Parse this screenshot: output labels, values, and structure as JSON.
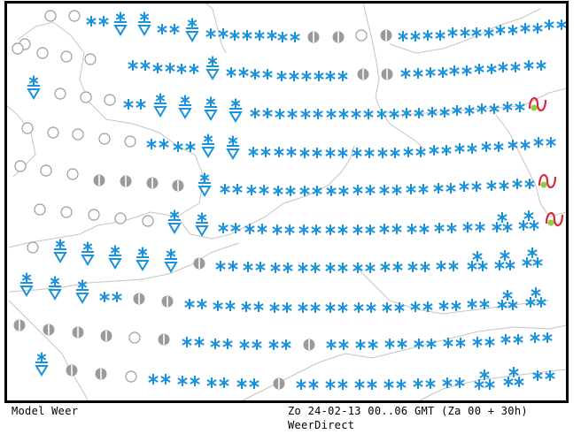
{
  "footer": {
    "model_label": "Model Weer",
    "valid_time": "Zo 24-02-13 00..06 GMT (Za 00 + 30h)",
    "source": "WeerDirect"
  },
  "colors": {
    "snow": "#1a93dc",
    "cloud": "#9a9a9a",
    "coastline": "#c4c4c4",
    "freezing_rain": "#d8283a",
    "freezing_dot": "#8ccf3c",
    "frame": "#000000"
  },
  "symbol_types": {
    "O": "clear-sky",
    "H": "partly-cloudy",
    "S2": "snow",
    "S3": "heavy-snow",
    "SS": "snow-shower",
    "FZ": "freezing-rain"
  },
  "forecast_rows": [
    [
      "O",
      "O",
      "O",
      "S2",
      "SS",
      "SS",
      "S2",
      "SS",
      "S2",
      "S2",
      "S2",
      "S2",
      "H",
      "H",
      "O",
      "H",
      "S2",
      "S2",
      "S2",
      "S2",
      "S2",
      "S2",
      "S2"
    ],
    [
      "O",
      "O",
      "O",
      "O",
      "S2",
      "S2",
      "S2",
      "SS",
      "S2",
      "S2",
      "S2",
      "S2",
      "S2",
      "H",
      "H",
      "S2",
      "S2",
      "S2",
      "S2",
      "S2",
      "S2"
    ],
    [
      "SS",
      "O",
      "O",
      "O",
      "S2",
      "SS",
      "SS",
      "SS",
      "SS",
      "S2",
      "S2",
      "S2",
      "S2",
      "S2",
      "S2",
      "S2",
      "S2",
      "S2",
      "S2",
      "S2",
      "FZ"
    ],
    [
      "O",
      "O",
      "O",
      "O",
      "O",
      "S2",
      "S2",
      "SS",
      "SS",
      "S2",
      "S2",
      "S2",
      "S2",
      "S2",
      "S2",
      "S2",
      "S2",
      "S2",
      "S2",
      "S2",
      "S2"
    ],
    [
      "O",
      "O",
      "O",
      "H",
      "H",
      "H",
      "H",
      "SS",
      "S2",
      "S2",
      "S2",
      "S2",
      "S2",
      "S2",
      "S2",
      "S2",
      "S2",
      "S2",
      "S2",
      "S2",
      "FZ"
    ],
    [
      "O",
      "O",
      "O",
      "O",
      "O",
      "SS",
      "SS",
      "S2",
      "S2",
      "S2",
      "S2",
      "S2",
      "S2",
      "S2",
      "S2",
      "S2",
      "S2",
      "S3",
      "S3",
      "FZ"
    ],
    [
      "O",
      "SS",
      "SS",
      "SS",
      "SS",
      "SS",
      "H",
      "S2",
      "S2",
      "S2",
      "S2",
      "S2",
      "S2",
      "S2",
      "S2",
      "S2",
      "S3",
      "S3",
      "S3"
    ],
    [
      "SS",
      "SS",
      "SS",
      "S2",
      "H",
      "H",
      "S2",
      "S2",
      "S2",
      "S2",
      "S2",
      "S2",
      "S2",
      "S2",
      "S2",
      "S2",
      "S2",
      "S3",
      "S3"
    ],
    [
      "H",
      "H",
      "H",
      "H",
      "O",
      "H",
      "S2",
      "S2",
      "S2",
      "S2",
      "H",
      "S2",
      "S2",
      "S2",
      "S2",
      "S2",
      "S2",
      "S2",
      "S2"
    ],
    [
      "SS",
      "H",
      "H",
      "O",
      "S2",
      "S2",
      "S2",
      "S2",
      "H",
      "S2",
      "S2",
      "S2",
      "S2",
      "S2",
      "S2",
      "S3",
      "S3",
      "S2"
    ]
  ]
}
